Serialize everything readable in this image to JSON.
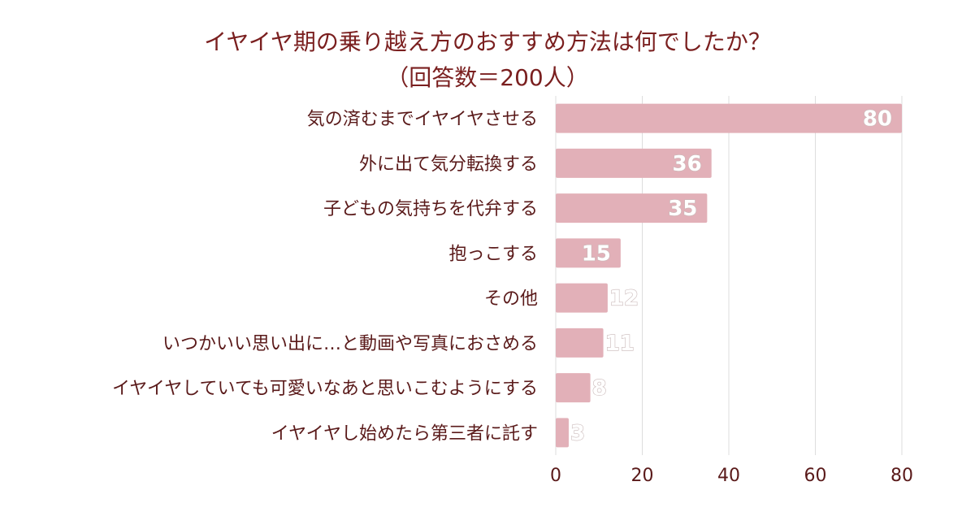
{
  "chart_data": {
    "type": "bar",
    "orientation": "horizontal",
    "title": "イヤイヤ期の乗り越え方のおすすめ方法は何でしたか？",
    "subtitle": "（回答数＝200人）",
    "categories": [
      "気の済むまでイヤイヤさせる",
      "外に出て気分転換する",
      "子どもの気持ちを代弁する",
      "抱っこする",
      "その他",
      "いつかいい思い出に…と動画や写真におさめる",
      "イヤイヤしていても可愛いなあと思いこむようにする",
      "イヤイヤし始めたら第三者に託す"
    ],
    "values": [
      80,
      36,
      35,
      15,
      12,
      11,
      8,
      3
    ],
    "xlim": [
      0,
      80
    ],
    "xticks": [
      0,
      20,
      40,
      60,
      80
    ],
    "grid": true,
    "bar_color": "#e2b0b8",
    "grid_color": "#dddddd",
    "text_color": "#5a1a1a",
    "title_color": "#7a1f1f"
  }
}
